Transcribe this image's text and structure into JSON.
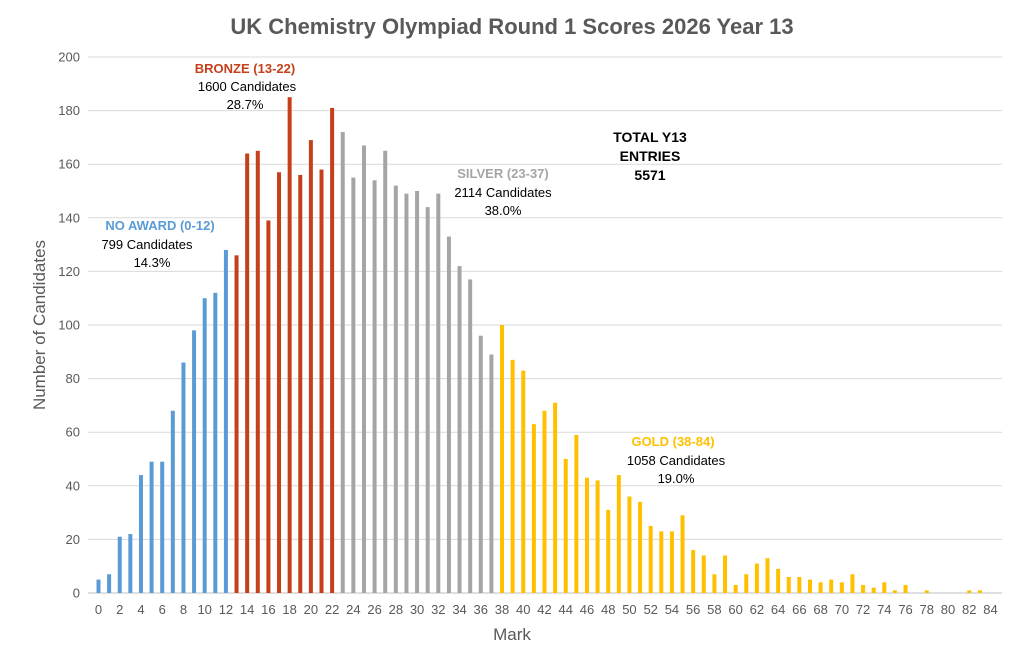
{
  "chart_data": {
    "type": "bar",
    "title": "UK Chemistry Olympiad Round 1 Scores 2026 Year 13",
    "xlabel": "Mark",
    "ylabel": "Number of Candidates",
    "ylim": [
      0,
      200
    ],
    "y_ticks": [
      "0",
      "20",
      "40",
      "60",
      "80",
      "100",
      "120",
      "140",
      "160",
      "180",
      "200"
    ],
    "x_ticks": [
      "0",
      "2",
      "4",
      "6",
      "8",
      "10",
      "12",
      "14",
      "16",
      "18",
      "20",
      "22",
      "24",
      "26",
      "28",
      "30",
      "32",
      "34",
      "36",
      "38",
      "40",
      "42",
      "44",
      "46",
      "48",
      "50",
      "52",
      "54",
      "56",
      "58",
      "60",
      "62",
      "64",
      "66",
      "68",
      "70",
      "72",
      "74",
      "76",
      "78",
      "80",
      "82",
      "84"
    ],
    "x_range": [
      0,
      84
    ],
    "grid": "horizontal",
    "legend": "none",
    "marks": [
      0,
      1,
      2,
      3,
      4,
      5,
      6,
      7,
      8,
      9,
      10,
      11,
      12,
      13,
      14,
      15,
      16,
      17,
      18,
      19,
      20,
      21,
      22,
      23,
      24,
      25,
      26,
      27,
      28,
      29,
      30,
      31,
      32,
      33,
      34,
      35,
      36,
      37,
      38,
      39,
      40,
      41,
      42,
      43,
      44,
      45,
      46,
      47,
      48,
      49,
      50,
      51,
      52,
      53,
      54,
      55,
      56,
      57,
      58,
      59,
      60,
      61,
      62,
      63,
      64,
      65,
      66,
      67,
      68,
      69,
      70,
      71,
      72,
      73,
      74,
      75,
      76,
      77,
      78,
      79,
      80,
      81,
      82,
      83,
      84
    ],
    "values": [
      5,
      7,
      21,
      22,
      44,
      49,
      49,
      68,
      86,
      98,
      110,
      112,
      128,
      126,
      164,
      165,
      139,
      157,
      185,
      156,
      169,
      158,
      181,
      172,
      155,
      167,
      154,
      165,
      152,
      149,
      150,
      144,
      149,
      133,
      122,
      117,
      96,
      89,
      100,
      87,
      83,
      63,
      68,
      71,
      50,
      59,
      43,
      42,
      31,
      44,
      36,
      34,
      25,
      23,
      23,
      29,
      16,
      14,
      7,
      14,
      3,
      7,
      11,
      13,
      9,
      6,
      6,
      5,
      4,
      5,
      4,
      7,
      3,
      2,
      4,
      1,
      3,
      0,
      1,
      0,
      0,
      0,
      1,
      1,
      0
    ],
    "colors": {
      "no_award": "#5b9bd5",
      "bronze": "#c5401a",
      "silver": "#a5a5a5",
      "gold": "#ffc000"
    },
    "bands": [
      {
        "key": "no_award",
        "from": 0,
        "to": 12
      },
      {
        "key": "bronze",
        "from": 13,
        "to": 22
      },
      {
        "key": "silver",
        "from": 23,
        "to": 37
      },
      {
        "key": "gold",
        "from": 38,
        "to": 84
      }
    ],
    "annotations": {
      "no_award": {
        "title": "NO AWARD (0-12)",
        "count": "799 Candidates",
        "percent": "14.3%"
      },
      "bronze": {
        "title": "BRONZE (13-22)",
        "count": "1600 Candidates",
        "percent": "28.7%"
      },
      "silver": {
        "title": "SILVER (23-37)",
        "count": "2114 Candidates",
        "percent": "38.0%"
      },
      "gold": {
        "title": "GOLD (38-84)",
        "count": "1058 Candidates",
        "percent": "19.0%"
      }
    },
    "total": {
      "line1": "TOTAL Y13",
      "line2": "ENTRIES",
      "value": "5571"
    }
  }
}
